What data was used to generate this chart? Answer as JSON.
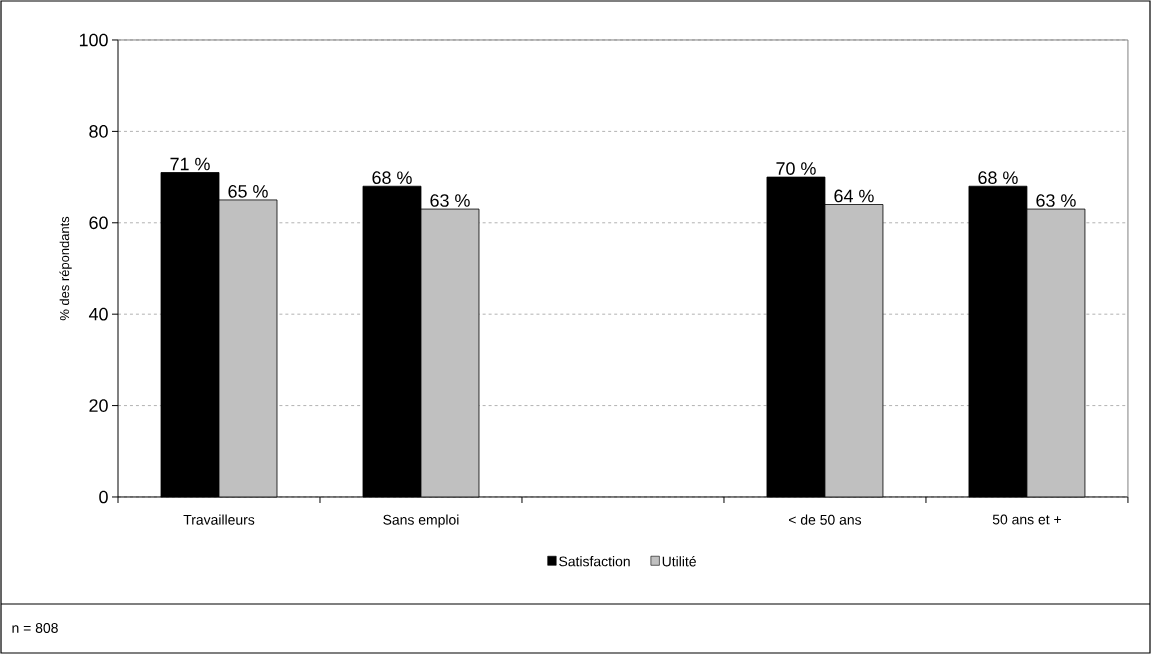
{
  "chart_data": {
    "type": "bar",
    "ylabel": "% des répondants",
    "categories": [
      "Travailleurs",
      "Sans emploi",
      null,
      "< de 50 ans",
      "50 ans et +"
    ],
    "series": [
      {
        "name": "Satisfaction",
        "color": "#000000",
        "values": [
          71,
          68,
          null,
          70,
          68
        ],
        "value_labels": [
          "71 %",
          "68 %",
          null,
          "70 %",
          "68 %"
        ]
      },
      {
        "name": "Utilité",
        "color": "#c0c0c0",
        "values": [
          65,
          63,
          null,
          64,
          63
        ],
        "value_labels": [
          "65 %",
          "63 %",
          null,
          "64 %",
          "63 %"
        ]
      }
    ],
    "ylim": [
      0,
      100
    ],
    "yticks": [
      0,
      20,
      40,
      60,
      80,
      100
    ],
    "grid": "y",
    "legend": "bottom",
    "annotations": [
      "n = 808"
    ]
  }
}
